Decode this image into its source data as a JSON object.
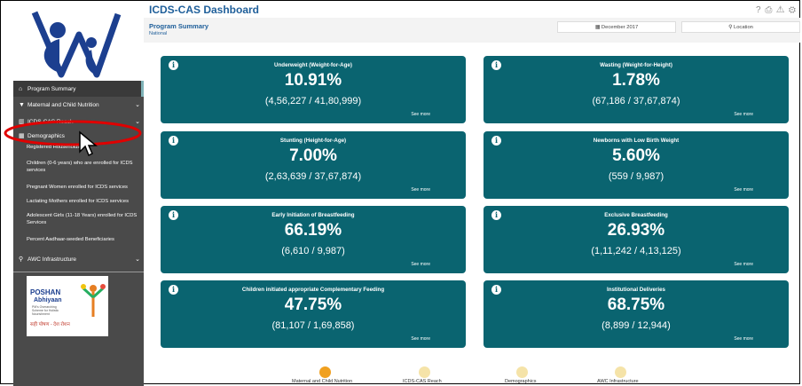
{
  "app": {
    "title": "ICDS-CAS Dashboard"
  },
  "header": {
    "program_summary": "Program Summary",
    "scope": "National",
    "date_label": "December 2017",
    "location_label": "Location",
    "icons": [
      "help-icon",
      "print-icon",
      "alert-icon",
      "settings-icon"
    ]
  },
  "sidebar": {
    "items": [
      {
        "icon": "home-icon",
        "label": "Program Summary",
        "active": true
      },
      {
        "icon": "nutrition-icon",
        "label": "Maternal and Child Nutrition",
        "chevron": "⌄"
      },
      {
        "icon": "chart-icon",
        "label": "ICDS-CAS Reach",
        "chevron": "⌄"
      },
      {
        "icon": "demographics-icon",
        "label": "Demographics",
        "chevron": "⌄"
      },
      {
        "icon": "location-icon",
        "label": "AWC Infrastructure",
        "chevron": "⌄"
      }
    ],
    "subitems": [
      "Registered Households",
      "Children (0-6 years) who are enrolled for ICDS services",
      "Pregnant Women enrolled for ICDS services",
      "Lactating Mothers enrolled for ICDS services",
      "Adolescent Girls (11-18 Years) enrolled for ICDS Services",
      "Percent Aadhaar-seeded Beneficiaries"
    ],
    "poshan": {
      "name": "POSHAN",
      "sub": "Abhiyaan",
      "tagline1": "PM's Overarching",
      "tagline2": "Scheme for Holistic",
      "tagline3": "Nourishment",
      "hindi": "सही पोषण - देश रोशन"
    }
  },
  "cards": [
    {
      "title": "Underweight (Weight-for-Age)",
      "value": "10.91%",
      "fraction": "(4,56,227 / 41,80,999)",
      "more": "See more"
    },
    {
      "title": "Wasting (Weight-for-Height)",
      "value": "1.78%",
      "fraction": "(67,186 / 37,67,874)",
      "more": "See more"
    },
    {
      "title": "Stunting (Height-for-Age)",
      "value": "7.00%",
      "fraction": "(2,63,639 / 37,67,874)",
      "more": "See more"
    },
    {
      "title": "Newborns with Low Birth Weight",
      "value": "5.60%",
      "fraction": "(559 / 9,987)",
      "more": "See more"
    },
    {
      "title": "Early Initiation of Breastfeeding",
      "value": "66.19%",
      "fraction": "(6,610 / 9,987)",
      "more": "See more"
    },
    {
      "title": "Exclusive Breastfeeding",
      "value": "26.93%",
      "fraction": "(1,11,242 / 4,13,125)",
      "more": "See more"
    },
    {
      "title": "Children initiated appropriate Complementary Feeding",
      "value": "47.75%",
      "fraction": "(81,107 / 1,69,858)",
      "more": "See more"
    },
    {
      "title": "Institutional Deliveries",
      "value": "68.75%",
      "fraction": "(8,899 / 12,944)",
      "more": "See more"
    }
  ],
  "bottom_nav": [
    {
      "label": "Maternal and Child Nutrition",
      "color": "#f0a020"
    },
    {
      "label": "ICDS-CAS Reach",
      "color": "#f5e3a8"
    },
    {
      "label": "Demographics",
      "color": "#f5e3a8"
    },
    {
      "label": "AWC Infrastructure",
      "color": "#f5e3a8"
    }
  ],
  "colors": {
    "card": "#0a6470",
    "sidebar": "#4a4a4a",
    "accent": "#1f5f9a",
    "highlight": "#e00000"
  }
}
